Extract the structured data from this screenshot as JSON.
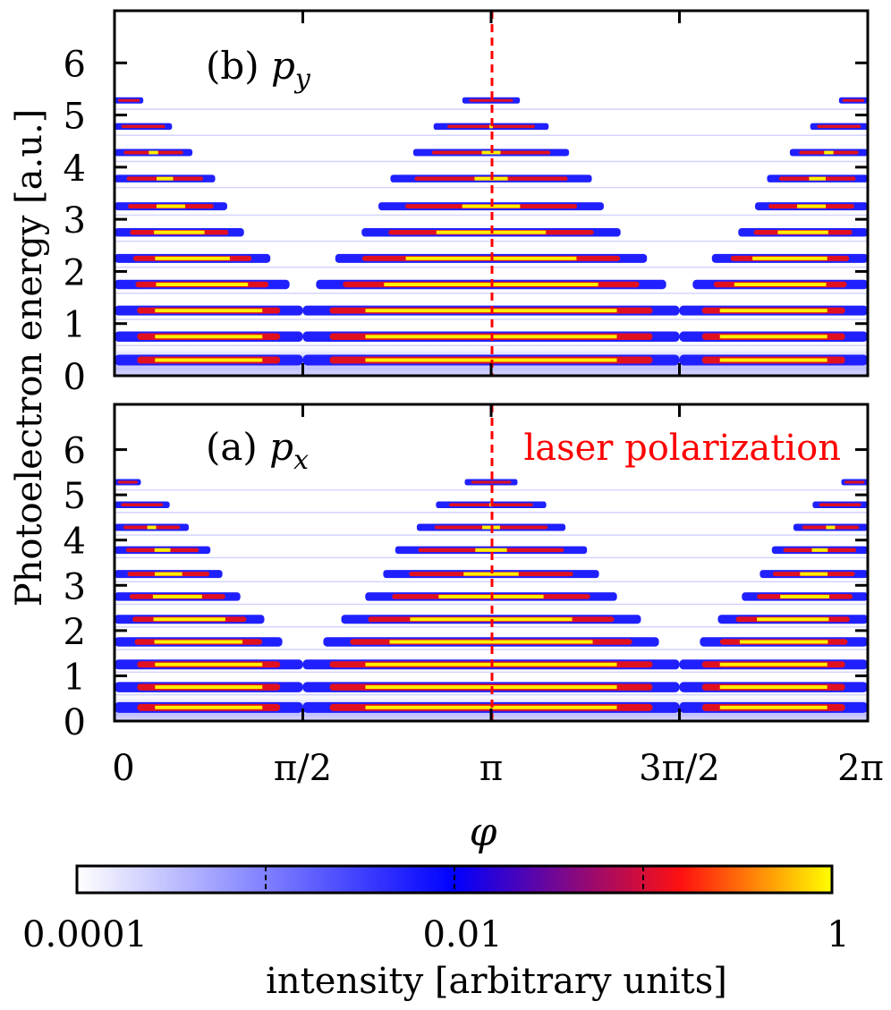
{
  "chart_data": [
    {
      "type": "heatmap",
      "panel_label": "(b) ",
      "panel_symbol": "p",
      "panel_subscript": "y",
      "xlim": [
        0,
        6.2832
      ],
      "ylim": [
        0,
        7
      ],
      "yticks": [
        "0",
        "1",
        "2",
        "3",
        "4",
        "5",
        "6"
      ],
      "bands": [
        {
          "energy": 0.3,
          "halfwidth": 1.571,
          "peak": 0.9,
          "bg": true
        },
        {
          "energy": 0.75,
          "halfwidth": 1.571,
          "peak": 0.9,
          "bg": true
        },
        {
          "energy": 1.25,
          "halfwidth": 1.571,
          "peak": 0.9,
          "bg": true
        },
        {
          "energy": 1.75,
          "halfwidth": 1.46,
          "peak": 0.85
        },
        {
          "energy": 2.25,
          "halfwidth": 1.3,
          "peak": 0.8
        },
        {
          "energy": 2.75,
          "halfwidth": 1.08,
          "peak": 0.7
        },
        {
          "energy": 3.25,
          "halfwidth": 0.94,
          "peak": 0.55
        },
        {
          "energy": 3.78,
          "halfwidth": 0.84,
          "peak": 0.45
        },
        {
          "energy": 4.28,
          "halfwidth": 0.65,
          "peak": 0.4
        },
        {
          "energy": 4.78,
          "halfwidth": 0.48,
          "peak": 0.3
        },
        {
          "energy": 5.28,
          "halfwidth": 0.24,
          "peak": 0.15
        }
      ]
    },
    {
      "type": "heatmap",
      "panel_label": "(a) ",
      "panel_symbol": "p",
      "panel_subscript": "x",
      "annotation": "laser polarization",
      "annotation_color": "#ff0000",
      "xlim": [
        0,
        6.2832
      ],
      "ylim": [
        0,
        7
      ],
      "yticks": [
        "0",
        "1",
        "2",
        "3",
        "4",
        "5",
        "6"
      ],
      "bands": [
        {
          "energy": 0.3,
          "halfwidth": 1.571,
          "peak": 0.9,
          "bg": true
        },
        {
          "energy": 0.75,
          "halfwidth": 1.571,
          "peak": 0.9,
          "bg": true
        },
        {
          "energy": 1.25,
          "halfwidth": 1.571,
          "peak": 0.9
        },
        {
          "energy": 1.75,
          "halfwidth": 1.4,
          "peak": 0.85
        },
        {
          "energy": 2.25,
          "halfwidth": 1.25,
          "peak": 0.8
        },
        {
          "energy": 2.75,
          "halfwidth": 1.05,
          "peak": 0.7
        },
        {
          "energy": 3.25,
          "halfwidth": 0.9,
          "peak": 0.55
        },
        {
          "energy": 3.78,
          "halfwidth": 0.8,
          "peak": 0.45
        },
        {
          "energy": 4.28,
          "halfwidth": 0.62,
          "peak": 0.4
        },
        {
          "energy": 4.78,
          "halfwidth": 0.46,
          "peak": 0.3
        },
        {
          "energy": 5.28,
          "halfwidth": 0.22,
          "peak": 0.15
        }
      ]
    }
  ],
  "x_axis": {
    "label": "φ",
    "ticks": [
      "0",
      "π/2",
      "π",
      "3π/2",
      "2π"
    ],
    "tick_values": [
      0,
      1.5708,
      3.1416,
      4.7124,
      6.2832
    ]
  },
  "y_axis": {
    "label": "Photoelectron energy [a.u.]"
  },
  "marker_line": {
    "x": 3.1416,
    "color": "#ff0000",
    "style": "dashed"
  },
  "colorbar": {
    "scale": "log",
    "range": [
      0.0001,
      1
    ],
    "tick_labels": [
      "0.0001",
      "0.01",
      "1"
    ],
    "label": "intensity [arbitrary units]",
    "colors": [
      "#ffffff",
      "#0000ff",
      "#ff0000",
      "#ffff00"
    ]
  }
}
